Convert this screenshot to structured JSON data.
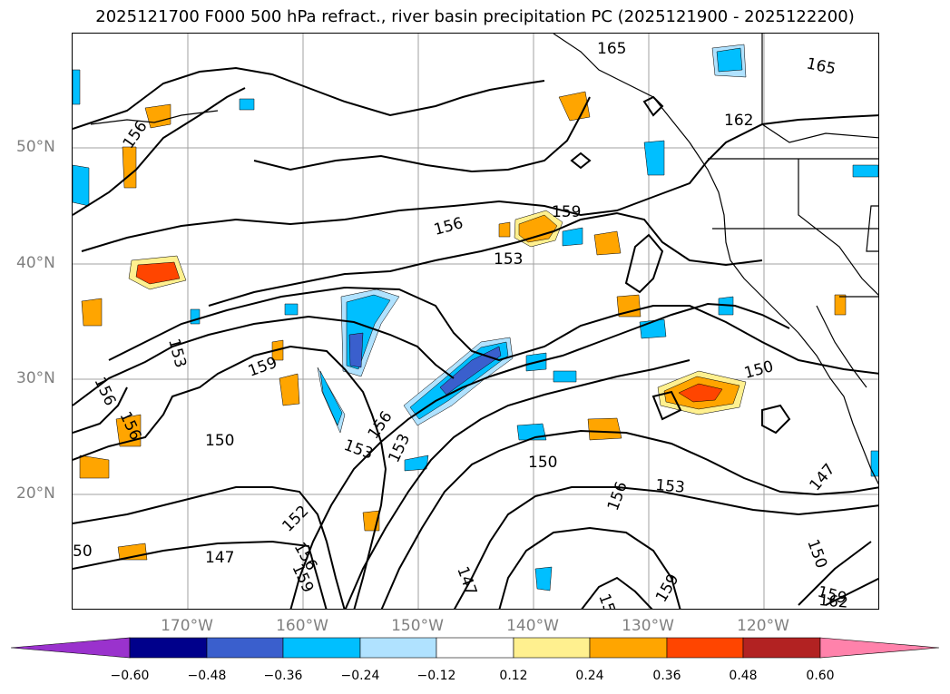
{
  "title": "2025121700 F000 500 hPa refract., river basin precipitation PC (2025121900 - 2025122200)",
  "map": {
    "lat_labels": [
      "50°N",
      "40°N",
      "30°N",
      "20°N"
    ],
    "lon_labels": [
      "170°W",
      "160°W",
      "150°W",
      "140°W",
      "130°W",
      "120°W"
    ],
    "contour_labels": [
      "165",
      "165",
      "162",
      "156",
      "159",
      "156",
      "153",
      "153",
      "159",
      "150",
      "156",
      "156",
      "150",
      "153",
      "156",
      "153",
      "150",
      "153",
      "156",
      "147",
      "152",
      "156",
      "159",
      "147",
      "159",
      "15",
      "147",
      "150",
      "159",
      "162",
      "50"
    ]
  },
  "colorbar": {
    "tick_labels": [
      "−0.60",
      "−0.48",
      "−0.36",
      "−0.24",
      "−0.12",
      "0.12",
      "0.24",
      "0.36",
      "0.48",
      "0.60"
    ],
    "colors": [
      "#9a32cd",
      "#00008b",
      "#3a5fcd",
      "#00bfff",
      "#b0e2ff",
      "#ffffff",
      "#fff08f",
      "#ffa500",
      "#ff4500",
      "#b22222",
      "#ff82ab"
    ]
  },
  "chart_data": {
    "type": "heatmap",
    "title": "2025121700 F000 500 hPa refract., river basin precipitation PC (2025121900 - 2025122200)",
    "x_ticks": [
      "170°W",
      "160°W",
      "150°W",
      "140°W",
      "130°W",
      "120°W"
    ],
    "y_ticks": [
      "50°N",
      "40°N",
      "30°N",
      "20°N"
    ],
    "xlim": [
      "180°W",
      "110°W"
    ],
    "ylim": [
      "10°N",
      "60°N"
    ],
    "contour_levels": [
      147,
      150,
      153,
      156,
      159,
      162,
      165
    ],
    "color_levels": [
      -0.6,
      -0.48,
      -0.36,
      -0.24,
      -0.12,
      0.12,
      0.24,
      0.36,
      0.48,
      0.6
    ],
    "grid": true
  }
}
